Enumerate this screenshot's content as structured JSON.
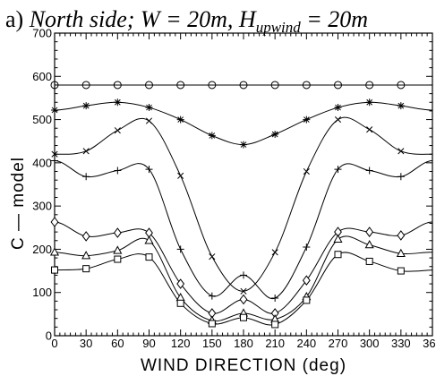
{
  "chart_data": {
    "type": "line",
    "title_prefix": "a) ",
    "title_main": "North side; W = 20m, H",
    "title_sub": "upwind",
    "title_suffix": " = 20m",
    "xlabel": "WIND DIRECTION (deg)",
    "ylabel": "C — model",
    "xlim": [
      0,
      360
    ],
    "ylim": [
      0,
      700
    ],
    "x_ticks": [
      0,
      30,
      60,
      90,
      120,
      150,
      180,
      210,
      240,
      270,
      300,
      330,
      360
    ],
    "y_ticks": [
      0,
      100,
      200,
      300,
      400,
      500,
      600,
      700
    ],
    "grid": false,
    "series": [
      {
        "marker": "circle",
        "x": [
          0,
          30,
          60,
          90,
          120,
          150,
          180,
          210,
          240,
          270,
          300,
          330
        ],
        "values": [
          580,
          580,
          580,
          580,
          580,
          580,
          580,
          580,
          580,
          580,
          580,
          580
        ]
      },
      {
        "marker": "asterisk",
        "x": [
          0,
          30,
          60,
          90,
          120,
          150,
          180,
          210,
          240,
          270,
          300,
          330
        ],
        "values": [
          522,
          532,
          540,
          528,
          500,
          463,
          442,
          466,
          500,
          528,
          540,
          532
        ]
      },
      {
        "marker": "x",
        "x": [
          0,
          30,
          60,
          90,
          120,
          150,
          180,
          210,
          240,
          270,
          300,
          330
        ],
        "values": [
          420,
          427,
          475,
          497,
          370,
          183,
          103,
          193,
          380,
          500,
          477,
          427
        ]
      },
      {
        "marker": "plus",
        "x": [
          0,
          30,
          60,
          90,
          120,
          150,
          180,
          210,
          240,
          270,
          300,
          330
        ],
        "values": [
          405,
          368,
          382,
          385,
          200,
          92,
          140,
          87,
          205,
          385,
          382,
          368
        ]
      },
      {
        "marker": "diamond",
        "x": [
          0,
          30,
          60,
          90,
          120,
          150,
          180,
          210,
          240,
          270,
          300,
          330
        ],
        "values": [
          263,
          230,
          238,
          238,
          120,
          52,
          84,
          52,
          128,
          240,
          240,
          232
        ]
      },
      {
        "marker": "triangle",
        "x": [
          0,
          30,
          60,
          90,
          120,
          150,
          180,
          210,
          240,
          270,
          300,
          330
        ],
        "values": [
          193,
          185,
          197,
          220,
          88,
          35,
          52,
          38,
          90,
          223,
          210,
          190
        ]
      },
      {
        "marker": "square",
        "x": [
          0,
          30,
          60,
          90,
          120,
          150,
          180,
          210,
          240,
          270,
          300,
          330
        ],
        "values": [
          152,
          155,
          177,
          182,
          75,
          28,
          42,
          26,
          82,
          188,
          172,
          150
        ]
      }
    ]
  }
}
